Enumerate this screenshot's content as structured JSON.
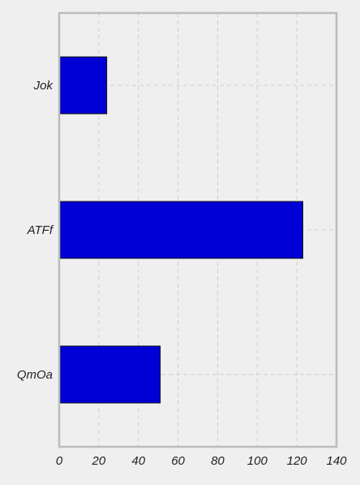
{
  "chart_data": {
    "type": "bar",
    "orientation": "horizontal",
    "categories": [
      "Jok",
      "ATFf",
      "QmOa"
    ],
    "values": [
      24,
      123,
      51
    ],
    "xlim": [
      0,
      140
    ],
    "x_ticks": [
      0,
      20,
      40,
      60,
      80,
      100,
      120,
      140
    ],
    "grid": true,
    "title": "",
    "xlabel": "",
    "ylabel": "",
    "colors": {
      "bar_fill": "#0000d4",
      "bar_edge": "#111111",
      "background": "#efefef",
      "axes_border": "#bcbcbc",
      "grid": "#cfcfcf"
    }
  }
}
